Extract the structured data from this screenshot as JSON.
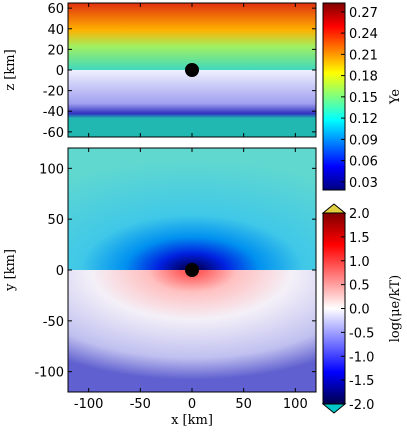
{
  "chart_data": [
    {
      "type": "heatmap",
      "ylabel": "z [km]",
      "xlim": [
        -120,
        120
      ],
      "ylim": [
        -65,
        65
      ],
      "xticks": [
        -100,
        -50,
        0,
        50,
        100
      ],
      "yticks": [
        -60,
        -40,
        -20,
        0,
        20,
        40,
        60
      ],
      "colorbar": {
        "label": "Ye",
        "lim": [
          0.0185,
          0.2825
        ],
        "ticks": [
          0.03,
          0.06,
          0.09,
          0.12,
          0.15,
          0.18,
          0.21,
          0.24,
          0.27
        ],
        "colormap": [
          "#00007f",
          "#0000ff",
          "#007fff",
          "#00ffff",
          "#7fff7f",
          "#ffff00",
          "#ff7f00",
          "#ff0000",
          "#7f0000"
        ]
      }
    },
    {
      "type": "heatmap",
      "xlabel": "x [km]",
      "ylabel": "y [km]",
      "xlim": [
        -120,
        120
      ],
      "ylim": [
        -120,
        120
      ],
      "xticks": [
        -100,
        -50,
        0,
        50,
        100
      ],
      "yticks": [
        -100,
        -50,
        0,
        50,
        100
      ],
      "colorbar": {
        "label": "log(μe/kT)",
        "lim": [
          -2,
          2
        ],
        "extend": true,
        "ticks": [
          {
            "value": -2,
            "label": "-2.0"
          },
          -1.5,
          {
            "value": -1,
            "label": "-1.0"
          },
          -0.5,
          {
            "value": 0,
            "label": "0.0"
          },
          0.5,
          {
            "value": 1,
            "label": "1.0"
          },
          1.5,
          {
            "value": 2,
            "label": "2.0"
          }
        ],
        "colormap": [
          "#00004c",
          "#0000ff",
          "#8080ff",
          "#ffffff",
          "#ff8080",
          "#ff0000",
          "#800000"
        ],
        "under": "#00c8c8",
        "over": "#e0d040"
      }
    }
  ]
}
